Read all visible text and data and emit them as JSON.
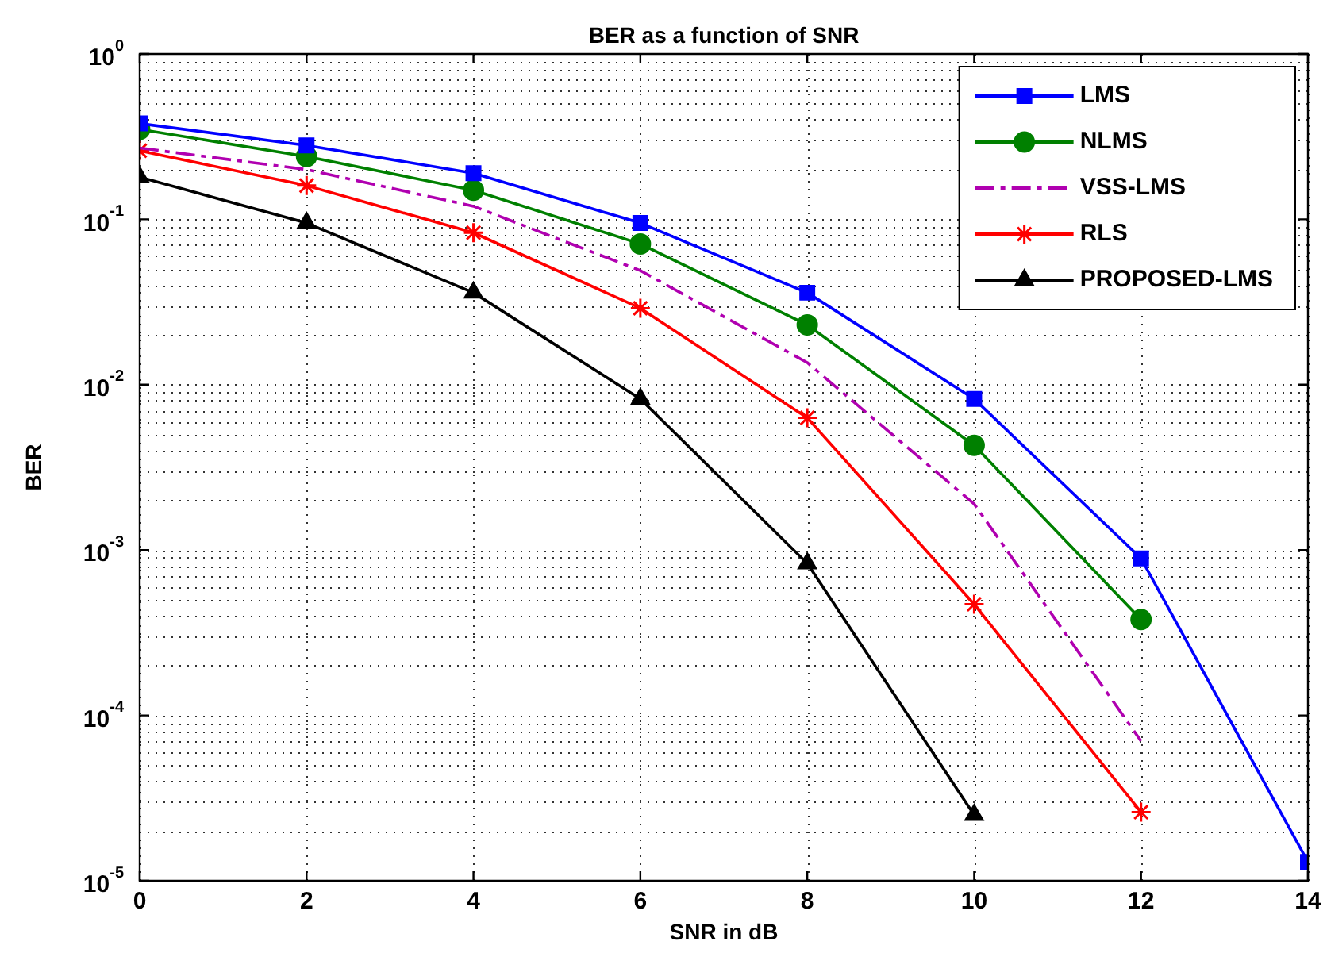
{
  "chart_data": {
    "type": "line",
    "title": "BER as a function of SNR",
    "xlabel": "SNR in dB",
    "ylabel": "BER",
    "xlim": [
      0,
      14
    ],
    "xticks": [
      0,
      2,
      4,
      6,
      8,
      10,
      12,
      14
    ],
    "ylim": [
      1e-05,
      1
    ],
    "yticks": [
      {
        "value": 1e-05,
        "label": "10$^{-5}$"
      },
      {
        "value": 0.0001,
        "label": "10$^{-4}$"
      },
      {
        "value": 0.001,
        "label": "10$^{-3}$"
      },
      {
        "value": 0.01,
        "label": "10$^{-2}$"
      },
      {
        "value": 0.1,
        "label": "10$^{-1}$"
      },
      {
        "value": 1,
        "label": "10$^{0}$"
      }
    ],
    "log": "y",
    "grid": true,
    "legend": "top right",
    "x": [
      0,
      2,
      4,
      6,
      8,
      10,
      12,
      14
    ],
    "series": [
      {
        "name": "LMS",
        "color": "#0000ff",
        "marker": "square",
        "line_style": "solid",
        "values": [
          0.38,
          0.28,
          0.19,
          0.095,
          0.036,
          0.0082,
          0.00089,
          1.3e-05
        ]
      },
      {
        "name": "NLMS",
        "color": "#008000",
        "marker": "circle",
        "line_style": "solid",
        "values": [
          0.35,
          0.24,
          0.15,
          0.071,
          0.023,
          0.0043,
          0.00038,
          null
        ]
      },
      {
        "name": "VSS-LMS",
        "color": "#b000b0",
        "marker": "none",
        "line_style": "dashed",
        "values": [
          0.27,
          0.2,
          0.12,
          0.049,
          0.0136,
          0.0019,
          7e-05,
          null
        ]
      },
      {
        "name": "RLS",
        "color": "#ff0000",
        "marker": "cross",
        "line_style": "solid",
        "values": [
          0.26,
          0.16,
          0.083,
          0.029,
          0.0063,
          0.00047,
          2.6e-05,
          null
        ]
      },
      {
        "name": "PROPOSED-LMS",
        "color": "#000000",
        "marker": "triangle",
        "line_style": "solid",
        "values": [
          0.18,
          0.095,
          0.036,
          0.0082,
          0.00083,
          2.5e-05,
          null,
          null
        ]
      }
    ]
  }
}
